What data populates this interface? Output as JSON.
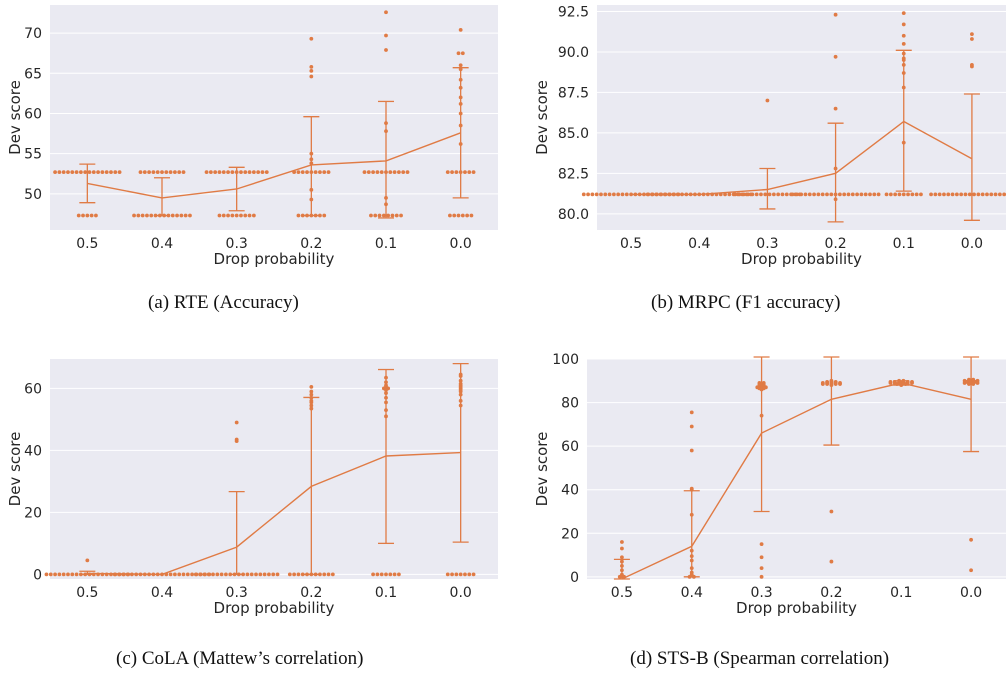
{
  "theme": {
    "plot_background": "#eaeaf2",
    "grid_color": "#ffffff",
    "accent": "#e07b45"
  },
  "x_tick_labels": [
    "0.5",
    "0.4",
    "0.3",
    "0.2",
    "0.1",
    "0.0"
  ],
  "chart_data": [
    {
      "type": "line",
      "caption": "(a) RTE (Accuracy)",
      "xlabel": "Drop probability",
      "ylabel": "Dev score",
      "categories": [
        "0.5",
        "0.4",
        "0.3",
        "0.2",
        "0.1",
        "0.0"
      ],
      "yticks": [
        50,
        55,
        60,
        65,
        70
      ],
      "ylim": [
        45.5,
        73.5
      ],
      "grid": true,
      "series": [
        {
          "values": [
            51.3,
            49.5,
            50.6,
            53.6,
            54.1,
            57.6
          ],
          "ci_low": [
            48.9,
            47.3,
            47.9,
            47.3,
            47.0,
            49.5
          ],
          "ci_high": [
            53.7,
            52.0,
            53.3,
            59.6,
            61.5,
            65.7
          ]
        }
      ],
      "points": [
        [
          52.7,
          52.7,
          52.7,
          52.7,
          52.7,
          52.7,
          52.7,
          52.7,
          52.7,
          52.7,
          52.7,
          52.7,
          52.7,
          52.7,
          52.7,
          52.7,
          47.3,
          47.3,
          47.3,
          47.3,
          47.3
        ],
        [
          52.7,
          52.7,
          52.7,
          52.7,
          52.7,
          52.7,
          52.7,
          52.7,
          52.7,
          52.7,
          52.7,
          47.3,
          47.3,
          47.3,
          47.3,
          47.3,
          47.3,
          47.3,
          47.3,
          47.3,
          47.3,
          47.3,
          47.3,
          47.3,
          47.3
        ],
        [
          52.7,
          52.7,
          52.7,
          52.7,
          52.7,
          52.7,
          52.7,
          52.7,
          52.7,
          52.7,
          52.7,
          52.7,
          52.7,
          52.7,
          52.7,
          47.3,
          47.3,
          47.3,
          47.3,
          47.3,
          47.3,
          47.3,
          47.3,
          47.3
        ],
        [
          52.7,
          52.7,
          52.7,
          52.7,
          52.7,
          52.7,
          52.7,
          52.7,
          52.7,
          53.8,
          54.3,
          55.0,
          50.5,
          49.3,
          47.3,
          47.3,
          47.3,
          47.3,
          47.3,
          47.3,
          47.3,
          64.6,
          65.3,
          65.8,
          69.3
        ],
        [
          52.7,
          52.7,
          52.7,
          52.7,
          52.7,
          52.7,
          52.7,
          52.7,
          52.7,
          52.7,
          52.7,
          57.8,
          58.8,
          49.5,
          48.7,
          47.3,
          47.3,
          47.3,
          47.3,
          47.3,
          47.3,
          47.3,
          47.3,
          67.9,
          69.7,
          72.6
        ],
        [
          52.7,
          52.7,
          52.7,
          52.7,
          52.7,
          52.7,
          52.7,
          56.2,
          58.5,
          60.0,
          61.2,
          62.0,
          63.2,
          64.2,
          65.5,
          66.0,
          67.5,
          67.5,
          70.4,
          47.3,
          47.3,
          47.3,
          47.3,
          47.3,
          47.3
        ]
      ]
    },
    {
      "type": "line",
      "caption": "(b) MRPC (F1 accuracy)",
      "xlabel": "Drop probability",
      "ylabel": "Dev score",
      "categories": [
        "0.5",
        "0.4",
        "0.3",
        "0.2",
        "0.1",
        "0.0"
      ],
      "yticks": [
        80.0,
        82.5,
        85.0,
        87.5,
        90.0,
        92.5
      ],
      "ylim": [
        79.0,
        92.9
      ],
      "grid": true,
      "series": [
        {
          "values": [
            81.2,
            81.2,
            81.5,
            82.5,
            85.7,
            83.4
          ],
          "ci_low": [
            81.2,
            81.2,
            80.3,
            79.5,
            81.4,
            79.6
          ],
          "ci_high": [
            81.2,
            81.2,
            82.8,
            85.6,
            90.1,
            87.4
          ]
        }
      ],
      "points": [
        [
          81.2,
          81.2,
          81.2,
          81.2,
          81.2,
          81.2,
          81.2,
          81.2,
          81.2,
          81.2,
          81.2,
          81.2,
          81.2,
          81.2,
          81.2,
          81.2,
          81.2,
          81.2,
          81.2,
          81.2,
          81.2,
          81.2,
          81.2
        ],
        [
          81.2,
          81.2,
          81.2,
          81.2,
          81.2,
          81.2,
          81.2,
          81.2,
          81.2,
          81.2,
          81.2,
          81.2,
          81.2,
          81.2,
          81.2,
          81.2,
          81.2,
          81.2,
          81.2,
          81.2,
          81.2,
          81.2,
          81.2,
          81.2,
          81.2
        ],
        [
          81.2,
          81.2,
          81.2,
          81.2,
          81.2,
          81.2,
          81.2,
          81.2,
          81.2,
          81.2,
          81.2,
          81.2,
          81.2,
          81.2,
          81.2,
          81.2,
          87.0
        ],
        [
          81.2,
          81.2,
          81.2,
          81.2,
          81.2,
          81.2,
          81.2,
          81.2,
          81.2,
          81.2,
          81.2,
          81.2,
          81.2,
          81.2,
          81.2,
          81.2,
          81.2,
          81.2,
          81.2,
          81.2,
          81.2,
          82.8,
          80.9,
          86.5,
          89.7,
          92.3
        ],
        [
          81.2,
          81.2,
          81.2,
          81.2,
          81.2,
          81.2,
          81.2,
          81.2,
          81.2,
          84.4,
          87.8,
          88.7,
          89.2,
          89.5,
          89.6,
          89.9,
          90.5,
          91.0,
          91.7,
          92.4
        ],
        [
          81.2,
          81.2,
          81.2,
          81.2,
          81.2,
          81.2,
          81.2,
          81.2,
          81.2,
          81.2,
          81.2,
          81.2,
          81.2,
          81.2,
          81.2,
          81.2,
          81.2,
          81.2,
          81.2,
          81.2,
          89.1,
          89.2,
          90.8,
          91.1
        ]
      ]
    },
    {
      "type": "line",
      "caption": "(c) CoLA (Mattew’s correlation)",
      "xlabel": "Drop probability",
      "ylabel": "Dev score",
      "categories": [
        "0.5",
        "0.4",
        "0.3",
        "0.2",
        "0.1",
        "0.0"
      ],
      "yticks": [
        0,
        20,
        40,
        60
      ],
      "ylim": [
        -1.5,
        69.5
      ],
      "grid": true,
      "series": [
        {
          "values": [
            0.3,
            0.0,
            8.8,
            28.4,
            38.2,
            39.3
          ],
          "ci_low": [
            0.0,
            0.0,
            0.0,
            0.0,
            10.0,
            10.4
          ],
          "ci_high": [
            1.0,
            0.0,
            26.7,
            57.1,
            66.1,
            68.0
          ]
        }
      ],
      "points": [
        [
          0,
          0,
          0,
          0,
          0,
          0,
          0,
          0,
          0,
          0,
          0,
          0,
          0,
          0,
          0,
          0,
          0,
          0,
          0,
          0,
          4.5
        ],
        [
          0,
          0,
          0,
          0,
          0,
          0,
          0,
          0,
          0,
          0,
          0,
          0,
          0,
          0,
          0,
          0,
          0,
          0,
          0,
          0,
          0,
          0,
          0
        ],
        [
          0,
          0,
          0,
          0,
          0,
          0,
          0,
          0,
          0,
          0,
          0,
          0,
          0,
          0,
          0,
          0,
          0,
          0,
          0,
          0,
          43.0,
          43.5,
          49.0
        ],
        [
          0,
          0,
          0,
          0,
          0,
          0,
          0,
          0,
          0,
          0,
          0,
          53.5,
          54.5,
          55.5,
          56.0,
          57.0,
          58.0,
          59.0,
          60.5
        ],
        [
          0,
          0,
          0,
          0,
          0,
          0,
          0,
          51.0,
          53.0,
          55.5,
          57.0,
          58.5,
          59.5,
          60.0,
          60.0,
          60.5,
          61.0,
          62.0,
          63.5
        ],
        [
          0,
          0,
          0,
          0,
          0,
          0,
          0,
          54.5,
          56.0,
          58.0,
          59.0,
          59.5,
          60.0,
          60.5,
          61.0,
          61.5,
          62.5,
          64.0,
          64.5
        ]
      ]
    },
    {
      "type": "line",
      "caption": "(d) STS-B (Spearman correlation)",
      "xlabel": "Drop probability",
      "ylabel": "Dev score",
      "categories": [
        "0.5",
        "0.4",
        "0.3",
        "0.2",
        "0.1",
        "0.0"
      ],
      "yticks": [
        0,
        20,
        40,
        60,
        80,
        100
      ],
      "ylim": [
        -1.0,
        100.0
      ],
      "grid": true,
      "series": [
        {
          "values": [
            -1.0,
            14.0,
            66.0,
            81.5,
            89.0,
            81.5
          ],
          "ci_low": [
            -1.0,
            0.0,
            30.0,
            60.5,
            88.0,
            57.5
          ],
          "ci_high": [
            8.0,
            39.5,
            101.0,
            101.0,
            90.0,
            101.0
          ]
        }
      ],
      "points": [
        [
          16.0,
          13.0,
          9.0,
          7.0,
          5.0,
          3.0,
          1.0,
          0.0,
          0.0
        ],
        [
          75.5,
          69.0,
          58.0,
          40.5,
          40.0,
          28.5,
          12.0,
          9.5,
          7.5,
          4.0,
          2.0,
          1.0,
          0.5,
          0.0,
          0.0
        ],
        [
          89.0,
          88.5,
          88.0,
          87.5,
          87.0,
          86.5,
          86.5,
          87.0,
          87.5,
          88.0,
          88.5,
          89.0,
          87.0,
          86.0,
          74.0,
          15.0,
          9.0,
          4.0,
          0.0
        ],
        [
          89.5,
          89.0,
          89.0,
          88.5,
          88.5,
          88.5,
          88.5,
          89.0,
          89.0,
          89.5,
          90.0,
          89.5,
          89.0,
          88.5,
          88.0,
          30.0,
          7.0
        ],
        [
          90.0,
          89.5,
          89.5,
          89.0,
          89.0,
          89.0,
          88.5,
          88.5,
          89.0,
          89.0,
          89.5,
          89.5,
          90.0,
          89.5,
          89.0,
          88.5,
          88.0,
          89.5
        ],
        [
          90.5,
          90.0,
          90.0,
          89.5,
          89.0,
          89.0,
          88.5,
          88.5,
          89.0,
          89.0,
          89.5,
          89.5,
          90.0,
          90.0,
          90.5,
          17.0,
          3.0
        ]
      ]
    }
  ]
}
